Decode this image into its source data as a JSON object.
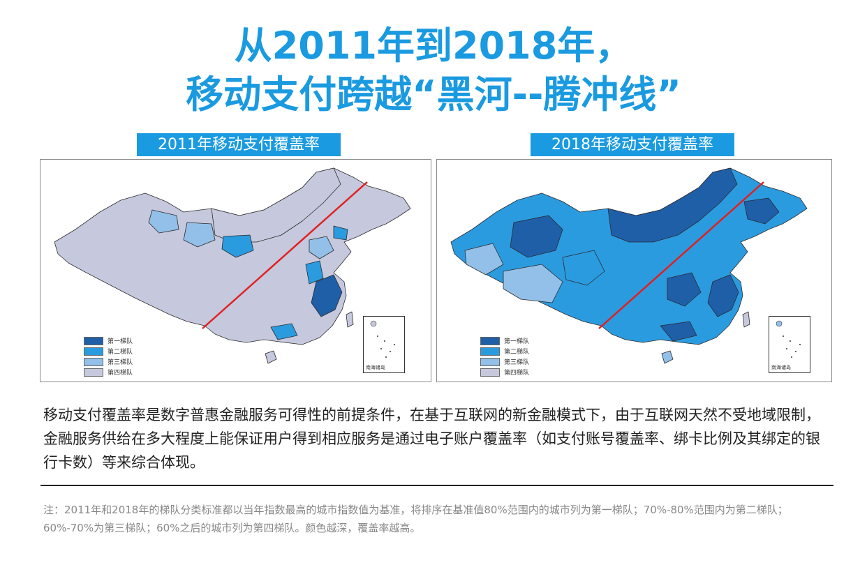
{
  "title": {
    "line1": "从2011年到2018年，",
    "line2": "移动支付跨越“黑河--腾冲线”"
  },
  "maps": [
    {
      "label": "2011年移动支付覆盖率",
      "legend": [
        "第一梯队",
        "第二梯队",
        "第三梯队",
        "第四梯队"
      ],
      "inset_label": "南海诸岛"
    },
    {
      "label": "2018年移动支付覆盖率",
      "legend": [
        "第一梯队",
        "第二梯队",
        "第三梯队",
        "第四梯队"
      ],
      "inset_label": "南海诸岛"
    }
  ],
  "colors": {
    "tier1": "#1f5fa8",
    "tier2": "#2b9be0",
    "tier3": "#93c0e8",
    "tier4": "#c6c8dd",
    "hu_line": "#e02020",
    "accent": "#1a9ae0"
  },
  "paragraph": "移动支付覆盖率是数字普惠金融服务可得性的前提条件，在基于互联网的新金融模式下，由于互联网天然不受地域限制，金融服务供给在多大程度上能保证用户得到相应服务是通过电子账户覆盖率（如支付账号覆盖率、绑卡比例及其绑定的银行卡数）等来综合体现。",
  "note": "注：2011年和2018年的梯队分类标准都以当年指数最高的城市指数值为基准，将排序在基准值80%范围内的城市列为第一梯队；70%-80%范围内为第二梯队；60%-70%为第三梯队；60%之后的城市列为第四梯队。颜色越深，覆盖率越高。"
}
